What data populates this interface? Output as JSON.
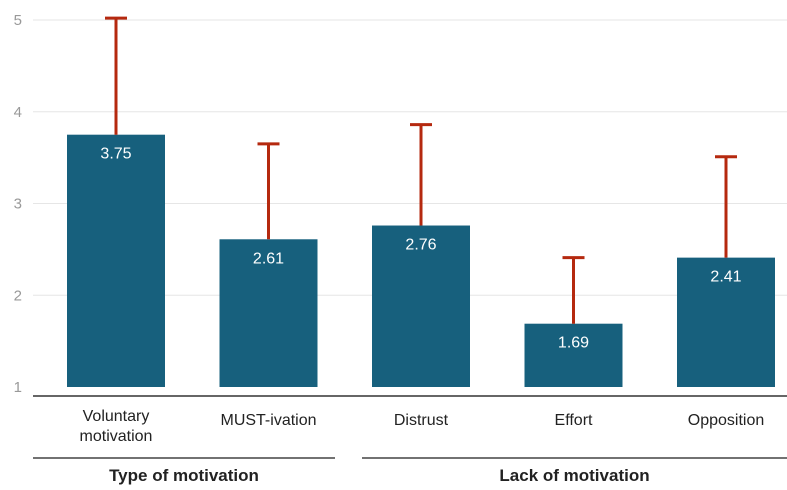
{
  "chart_data": {
    "type": "bar",
    "categories": [
      "Voluntary motivation",
      "MUST-ivation",
      "Distrust",
      "Effort",
      "Opposition"
    ],
    "category_label_lines": [
      [
        "Voluntary",
        "motivation"
      ],
      [
        "MUST-ivation"
      ],
      [
        "Distrust"
      ],
      [
        "Effort"
      ],
      [
        "Opposition"
      ]
    ],
    "values": [
      3.75,
      2.61,
      2.76,
      1.69,
      2.41
    ],
    "value_labels": [
      "3.75",
      "2.61",
      "2.76",
      "1.69",
      "2.41"
    ],
    "error_upper": [
      5.02,
      3.65,
      3.86,
      2.41,
      3.51
    ],
    "ylim": [
      1,
      5
    ],
    "yticks": [
      1,
      2,
      3,
      4,
      5
    ],
    "grid": true,
    "groups": [
      {
        "label": "Type of motivation",
        "categories": [
          0,
          1
        ]
      },
      {
        "label": "Lack of motivation",
        "categories": [
          2,
          3,
          4
        ]
      }
    ],
    "colors": {
      "bar": "#17607d",
      "error_bar": "#b5290f",
      "value_label": "#ffffff",
      "grid": "#e6e6e6",
      "axis": "#333333",
      "tick_label": "#999999",
      "category_label": "#222222",
      "group_line": "#444444"
    }
  }
}
